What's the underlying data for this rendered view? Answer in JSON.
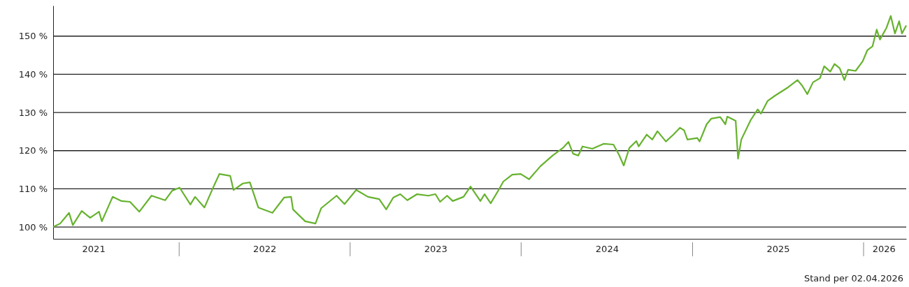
{
  "chart_data": {
    "type": "line",
    "x": [
      "2021-04-07",
      "2021-04-22",
      "2021-05-11",
      "2021-05-19",
      "2021-06-07",
      "2021-06-25",
      "2021-07-14",
      "2021-07-20",
      "2021-08-12",
      "2021-08-31",
      "2021-09-18",
      "2021-10-08",
      "2021-11-03",
      "2021-12-02",
      "2021-12-17",
      "2022-01-02",
      "2022-01-25",
      "2022-02-04",
      "2022-02-24",
      "2022-03-17",
      "2022-03-28",
      "2022-04-20",
      "2022-04-27",
      "2022-05-17",
      "2022-06-01",
      "2022-06-19",
      "2022-07-19",
      "2022-08-13",
      "2022-08-28",
      "2022-09-01",
      "2022-09-27",
      "2022-10-19",
      "2022-10-31",
      "2022-12-03",
      "2022-12-20",
      "2023-01-14",
      "2023-02-08",
      "2023-03-04",
      "2023-03-19",
      "2023-04-03",
      "2023-04-18",
      "2023-05-03",
      "2023-05-24",
      "2023-06-17",
      "2023-07-02",
      "2023-07-12",
      "2023-07-27",
      "2023-08-08",
      "2023-08-31",
      "2023-09-15",
      "2023-10-06",
      "2023-10-15",
      "2023-10-28",
      "2023-11-14",
      "2023-11-24",
      "2023-12-13",
      "2023-12-31",
      "2024-01-18",
      "2024-02-11",
      "2024-03-08",
      "2024-03-30",
      "2024-04-11",
      "2024-04-21",
      "2024-05-02",
      "2024-05-11",
      "2024-06-01",
      "2024-06-25",
      "2024-07-16",
      "2024-07-28",
      "2024-08-07",
      "2024-08-19",
      "2024-09-03",
      "2024-09-08",
      "2024-09-25",
      "2024-10-07",
      "2024-10-18",
      "2024-11-05",
      "2024-11-21",
      "2024-12-05",
      "2024-12-14",
      "2024-12-21",
      "2025-01-11",
      "2025-01-16",
      "2025-01-31",
      "2025-02-10",
      "2025-03-01",
      "2025-03-12",
      "2025-03-16",
      "2025-04-03",
      "2025-04-08",
      "2025-04-15",
      "2025-05-05",
      "2025-05-20",
      "2025-05-27",
      "2025-06-10",
      "2025-06-26",
      "2025-07-24",
      "2025-08-13",
      "2025-08-23",
      "2025-09-03",
      "2025-09-15",
      "2025-09-30",
      "2025-10-09",
      "2025-10-22",
      "2025-10-31",
      "2025-11-11",
      "2025-11-21",
      "2025-11-29",
      "2025-12-15",
      "2025-12-30",
      "2026-01-09",
      "2026-01-20",
      "2026-01-29",
      "2026-02-05",
      "2026-02-19",
      "2026-02-28",
      "2026-03-09",
      "2026-03-18",
      "2026-03-24",
      "2026-04-02"
    ],
    "series": [
      {
        "color": "#66b22e",
        "values": [
          100.0,
          100.9,
          103.7,
          100.5,
          104.2,
          102.4,
          104.0,
          101.5,
          107.9,
          106.8,
          106.6,
          104.0,
          108.2,
          107.0,
          109.5,
          110.3,
          105.9,
          107.9,
          105.1,
          111.0,
          113.9,
          113.4,
          109.7,
          111.4,
          111.7,
          105.1,
          103.7,
          107.7,
          107.9,
          104.6,
          101.5,
          100.9,
          104.9,
          108.2,
          106.0,
          109.7,
          107.9,
          107.3,
          104.6,
          107.7,
          108.6,
          107.0,
          108.6,
          108.2,
          108.6,
          106.6,
          108.2,
          106.8,
          107.9,
          110.6,
          106.8,
          108.6,
          106.2,
          109.7,
          111.9,
          113.7,
          113.9,
          112.5,
          115.9,
          118.7,
          120.7,
          122.3,
          119.2,
          118.7,
          121.1,
          120.5,
          121.8,
          121.6,
          118.9,
          116.1,
          120.7,
          122.5,
          121.1,
          124.2,
          122.9,
          125.1,
          122.4,
          124.2,
          126.0,
          125.3,
          122.9,
          123.3,
          122.4,
          126.9,
          128.4,
          128.8,
          126.9,
          128.9,
          127.8,
          117.9,
          122.9,
          128.0,
          130.8,
          129.7,
          133.0,
          134.4,
          136.6,
          138.5,
          137.0,
          134.8,
          137.9,
          139.0,
          142.1,
          140.7,
          142.7,
          141.6,
          138.5,
          141.2,
          140.9,
          143.4,
          146.3,
          147.3,
          151.7,
          149.1,
          152.2,
          155.3,
          150.7,
          153.9,
          150.7,
          152.8
        ]
      }
    ],
    "xlim": [
      "2021-04-07",
      "2026-04-02"
    ],
    "xticks": [
      {
        "value": "2021-07-02",
        "label": "2021"
      },
      {
        "value": "2022-07-02",
        "label": "2022"
      },
      {
        "value": "2023-07-02",
        "label": "2023"
      },
      {
        "value": "2024-07-02",
        "label": "2024"
      },
      {
        "value": "2025-07-02",
        "label": "2025"
      },
      {
        "value": "2026-02-13",
        "label": "2026"
      }
    ],
    "ylim": [
      96.9,
      158
    ],
    "yticks": [
      {
        "value": 100,
        "label": "100 %"
      },
      {
        "value": 110,
        "label": "110 %"
      },
      {
        "value": 120,
        "label": "120 %"
      },
      {
        "value": 130,
        "label": "130 %"
      },
      {
        "value": 140,
        "label": "140 %"
      },
      {
        "value": 150,
        "label": "150 %"
      }
    ],
    "grid": "y",
    "line_style": "solid",
    "marker": "none",
    "annotations": [
      "Stand per 02.04.2026"
    ]
  }
}
